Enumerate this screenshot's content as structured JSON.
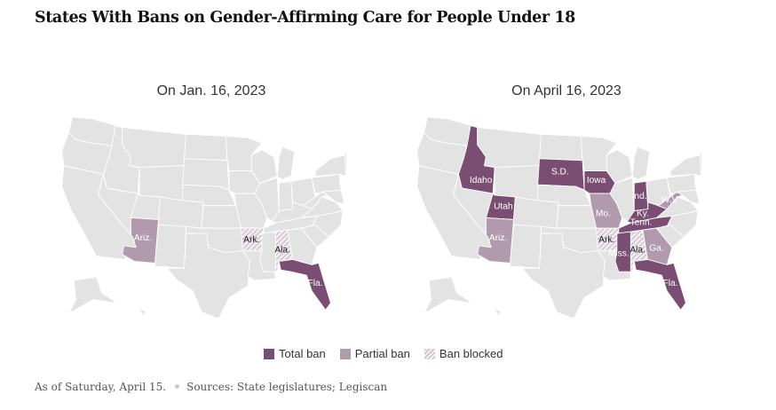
{
  "title": "States With Bans on Gender-Affirming Care for People Under 18",
  "colors": {
    "total": "#7a4e73",
    "partial": "#b29aad",
    "blocked_stripe": "#cfc2cc",
    "default": "#e3e3e3",
    "label_dark": "#222222",
    "label_light": "#ffffff"
  },
  "maps": [
    {
      "title": "On Jan. 16, 2023",
      "states": {
        "AZ": {
          "status": "partial",
          "label": "Ariz."
        },
        "AR": {
          "status": "blocked",
          "label": "Ark."
        },
        "AL": {
          "status": "blocked",
          "label": "Ala."
        },
        "FL": {
          "status": "total",
          "label": "Fla."
        }
      }
    },
    {
      "title": "On April 16, 2023",
      "states": {
        "ID": {
          "status": "total",
          "label": "Idaho"
        },
        "UT": {
          "status": "total",
          "label": "Utah"
        },
        "SD": {
          "status": "total",
          "label": "S.D."
        },
        "IA": {
          "status": "total",
          "label": "Iowa"
        },
        "IN": {
          "status": "total",
          "label": "Ind."
        },
        "KY": {
          "status": "total",
          "label": "Ky."
        },
        "TN": {
          "status": "total",
          "label": "Tenn."
        },
        "MS": {
          "status": "total",
          "label": "Miss."
        },
        "FL": {
          "status": "total",
          "label": "Fla."
        },
        "AZ": {
          "status": "partial",
          "label": "Ariz."
        },
        "MO": {
          "status": "partial",
          "label": "Mo."
        },
        "WV": {
          "status": "partial",
          "label": "W.V."
        },
        "GA": {
          "status": "partial",
          "label": "Ga."
        },
        "AR": {
          "status": "blocked",
          "label": "Ark."
        },
        "AL": {
          "status": "blocked",
          "label": "Ala."
        }
      }
    }
  ],
  "legend": [
    {
      "key": "total",
      "label": "Total ban"
    },
    {
      "key": "partial",
      "label": "Partial ban"
    },
    {
      "key": "blocked",
      "label": "Ban blocked"
    }
  ],
  "footer": {
    "note": "As of Saturday, April 15.",
    "sources": "Sources: State legislatures; Legiscan"
  }
}
